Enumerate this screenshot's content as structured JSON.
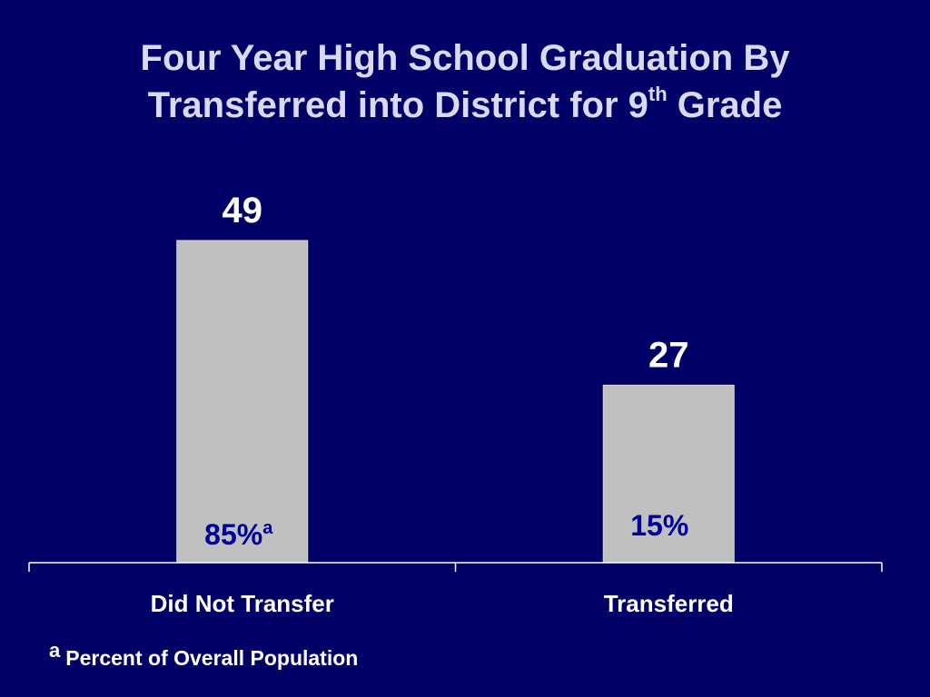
{
  "title": {
    "line1": "Four Year High School Graduation By",
    "line2_pre": "Transferred into District for 9",
    "line2_sup": "th",
    "line2_post": " Grade"
  },
  "colors": {
    "background": "#000066",
    "bar": "#c0c0c0",
    "title": "#d9d9f2",
    "value_label": "#ffffff",
    "inbar_label": "#000099"
  },
  "chart_data": {
    "type": "bar",
    "categories": [
      "Did Not Transfer",
      "Transferred"
    ],
    "values": [
      49,
      27
    ],
    "data_labels": [
      "49",
      "27"
    ],
    "inbar_labels": [
      {
        "text": "85%",
        "sup": "a"
      },
      {
        "text": "15%",
        "sup": ""
      }
    ],
    "ylim": [
      0,
      55
    ],
    "grid": false,
    "legend": "none",
    "xlabel": "",
    "ylabel": ""
  },
  "footnote": {
    "mark": "a",
    "text": "Percent of Overall Population"
  }
}
